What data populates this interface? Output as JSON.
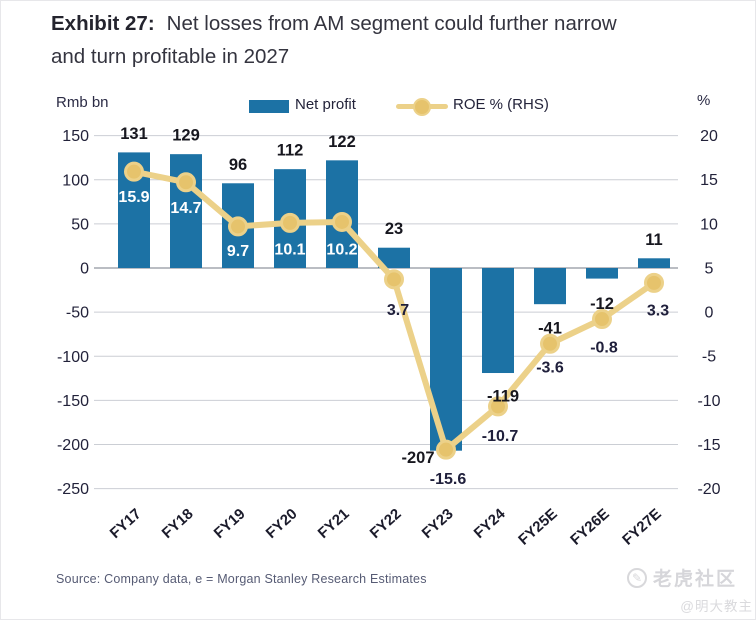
{
  "header": {
    "exhibit_label": "Exhibit 27:",
    "title_line1": "Net losses from AM segment could further narrow",
    "title_line2": "and turn profitable in 2027"
  },
  "chart_data": {
    "type": "bar+line",
    "title": "Net losses from AM segment could further narrow and turn profitable in 2027",
    "categories": [
      "FY17",
      "FY18",
      "FY19",
      "FY20",
      "FY21",
      "FY22",
      "FY23",
      "FY24",
      "FY25E",
      "FY26E",
      "FY27E"
    ],
    "series": [
      {
        "name": "Net profit",
        "type": "bar",
        "axis": "left",
        "unit": "Rmb bn",
        "color": "#1c72a5",
        "values": [
          131,
          129,
          96,
          112,
          122,
          23,
          -207,
          -119,
          -41,
          -12,
          11
        ]
      },
      {
        "name": "ROE % (RHS)",
        "type": "line",
        "axis": "right",
        "unit": "%",
        "color": "#ecd189",
        "marker_color": "#e6c36c",
        "marker_ring_color": "#ecd189",
        "values": [
          15.9,
          14.7,
          9.7,
          10.1,
          10.2,
          3.7,
          -15.6,
          -10.7,
          -3.6,
          -0.8,
          3.3
        ]
      }
    ],
    "left_axis": {
      "label": "Rmb bn",
      "ticks": [
        150,
        100,
        50,
        0,
        -50,
        -100,
        -150,
        -200,
        -250
      ],
      "range": [
        -250,
        150
      ]
    },
    "right_axis": {
      "label": "%",
      "ticks": [
        20,
        15,
        10,
        5,
        0,
        -5,
        -10,
        -15,
        -20
      ],
      "range": [
        -20,
        20
      ]
    },
    "grid": true,
    "legend_position": "top",
    "grid_color": "#cbced4",
    "zero_line_color": "#a4a7af",
    "tick_text_color": "#22223a",
    "bar_label_color": "#17171f",
    "roe_label_dark_color": "#20203c",
    "roe_label_light_color": "#ffffff"
  },
  "source": {
    "text": "Source: Company data, e = Morgan Stanley Research Estimates"
  },
  "watermark": {
    "icon": "pen-icon",
    "brand": "老虎社区",
    "handle": "@明大教主"
  }
}
